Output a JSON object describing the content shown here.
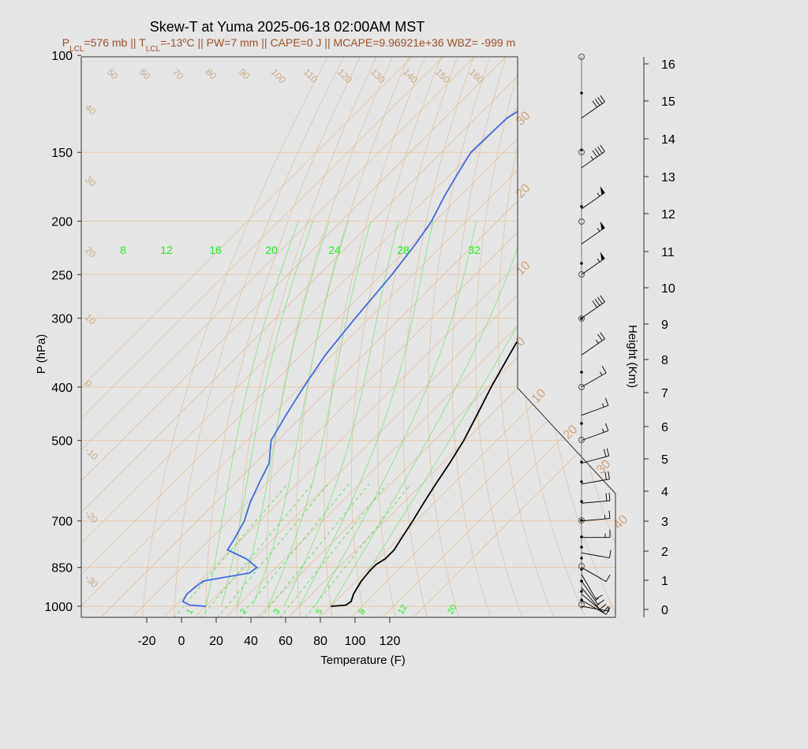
{
  "chart_data": {
    "type": "skew-t",
    "title": "Skew-T at Yuma 2025-06-18 02:00AM MST",
    "subtitle": {
      "p_lcl_prefix": "P",
      "p_lcl_sub": "LCL",
      "p_lcl_value": "=576 mb || T",
      "t_lcl_sub": "LCL",
      "t_lcl_value": "=-13",
      "deg_mark": "o",
      "rest": "C || PW=7 mm || CAPE=0 J || MCAPE=9.96921e+36 WBZ= -999 m"
    },
    "xlabel": "Temperature (F)",
    "ylabel": "P (hPa)",
    "right_label": "Height (Km)",
    "x_ticks": [
      -20,
      0,
      20,
      40,
      60,
      80,
      100,
      120
    ],
    "pressure_ticks": [
      100,
      150,
      200,
      250,
      300,
      400,
      500,
      700,
      850,
      1000
    ],
    "height_ticks_km": [
      0,
      1,
      2,
      3,
      4,
      5,
      6,
      7,
      8,
      9,
      10,
      11,
      12,
      13,
      14,
      15,
      16
    ],
    "isotherm_labels_top": [
      "50",
      "60",
      "70",
      "80",
      "90",
      "100",
      "110",
      "120",
      "130",
      "140",
      "150",
      "160"
    ],
    "isotherm_labels_left": [
      "40",
      "30",
      "20",
      "10",
      "0",
      "-10",
      "-20",
      "-30"
    ],
    "saturated_adiabat_labels": [
      "30",
      "20",
      "10",
      "0",
      "10",
      "20",
      "30",
      "40"
    ],
    "mixing_ratio_labels_top": [
      "8",
      "12",
      "16",
      "20",
      "24",
      "28",
      "32"
    ],
    "mixing_ratio_labels_bottom": [
      "1",
      "2",
      "3",
      "5",
      "8",
      "12",
      "20"
    ],
    "temperature_profile": {
      "color": "#000000",
      "points_p_tf": [
        [
          1000,
          86
        ],
        [
          995,
          94
        ],
        [
          980,
          95
        ],
        [
          950,
          92
        ],
        [
          900,
          89
        ],
        [
          860,
          88
        ],
        [
          840,
          88
        ],
        [
          820,
          90
        ],
        [
          790,
          90
        ],
        [
          760,
          88
        ],
        [
          700,
          84
        ],
        [
          650,
          80
        ],
        [
          600,
          76
        ],
        [
          550,
          72
        ],
        [
          500,
          67
        ],
        [
          450,
          60
        ],
        [
          400,
          52
        ],
        [
          350,
          44
        ],
        [
          300,
          35
        ],
        [
          250,
          24
        ],
        [
          220,
          16
        ],
        [
          200,
          10
        ],
        [
          180,
          3
        ],
        [
          165,
          -3
        ],
        [
          150,
          -4
        ],
        [
          130,
          3
        ],
        [
          110,
          10
        ],
        [
          100,
          14
        ]
      ]
    },
    "dewpoint_profile": {
      "color": "#4169e1",
      "points_p_tf": [
        [
          1000,
          14
        ],
        [
          995,
          4
        ],
        [
          980,
          -2
        ],
        [
          950,
          -4
        ],
        [
          920,
          -3
        ],
        [
          900,
          -2
        ],
        [
          870,
          20
        ],
        [
          850,
          21
        ],
        [
          820,
          10
        ],
        [
          790,
          -6
        ],
        [
          760,
          -8
        ],
        [
          700,
          -13
        ],
        [
          650,
          -20
        ],
        [
          600,
          -26
        ],
        [
          550,
          -32
        ],
        [
          500,
          -44
        ],
        [
          450,
          -50
        ],
        [
          400,
          -56
        ],
        [
          350,
          -62
        ],
        [
          300,
          -66
        ],
        [
          250,
          -70
        ],
        [
          220,
          -74
        ],
        [
          200,
          -78
        ],
        [
          180,
          -85
        ],
        [
          165,
          -90
        ],
        [
          150,
          -95
        ],
        [
          130,
          -94
        ],
        [
          110,
          -80
        ],
        [
          100,
          -68
        ]
      ]
    },
    "wind_barbs": [
      {
        "p": 1000,
        "dir": 280,
        "kt": 5
      },
      {
        "p": 975,
        "dir": 300,
        "kt": 10
      },
      {
        "p": 950,
        "dir": 310,
        "kt": 12
      },
      {
        "p": 925,
        "dir": 320,
        "kt": 15
      },
      {
        "p": 900,
        "dir": 325,
        "kt": 15
      },
      {
        "p": 875,
        "dir": 330,
        "kt": 10
      },
      {
        "p": 850,
        "dir": 300,
        "kt": 10
      },
      {
        "p": 800,
        "dir": 280,
        "kt": 10
      },
      {
        "p": 750,
        "dir": 270,
        "kt": 15
      },
      {
        "p": 700,
        "dir": 265,
        "kt": 15
      },
      {
        "p": 650,
        "dir": 265,
        "kt": 20
      },
      {
        "p": 600,
        "dir": 260,
        "kt": 20
      },
      {
        "p": 550,
        "dir": 255,
        "kt": 20
      },
      {
        "p": 500,
        "dir": 250,
        "kt": 15
      },
      {
        "p": 450,
        "dir": 250,
        "kt": 15
      },
      {
        "p": 400,
        "dir": 240,
        "kt": 15
      },
      {
        "p": 350,
        "dir": 235,
        "kt": 25
      },
      {
        "p": 300,
        "dir": 235,
        "kt": 40
      },
      {
        "p": 250,
        "dir": 235,
        "kt": 55
      },
      {
        "p": 220,
        "dir": 235,
        "kt": 55
      },
      {
        "p": 190,
        "dir": 235,
        "kt": 55
      },
      {
        "p": 160,
        "dir": 235,
        "kt": 45
      },
      {
        "p": 130,
        "dir": 235,
        "kt": 40
      }
    ],
    "grid": true
  }
}
